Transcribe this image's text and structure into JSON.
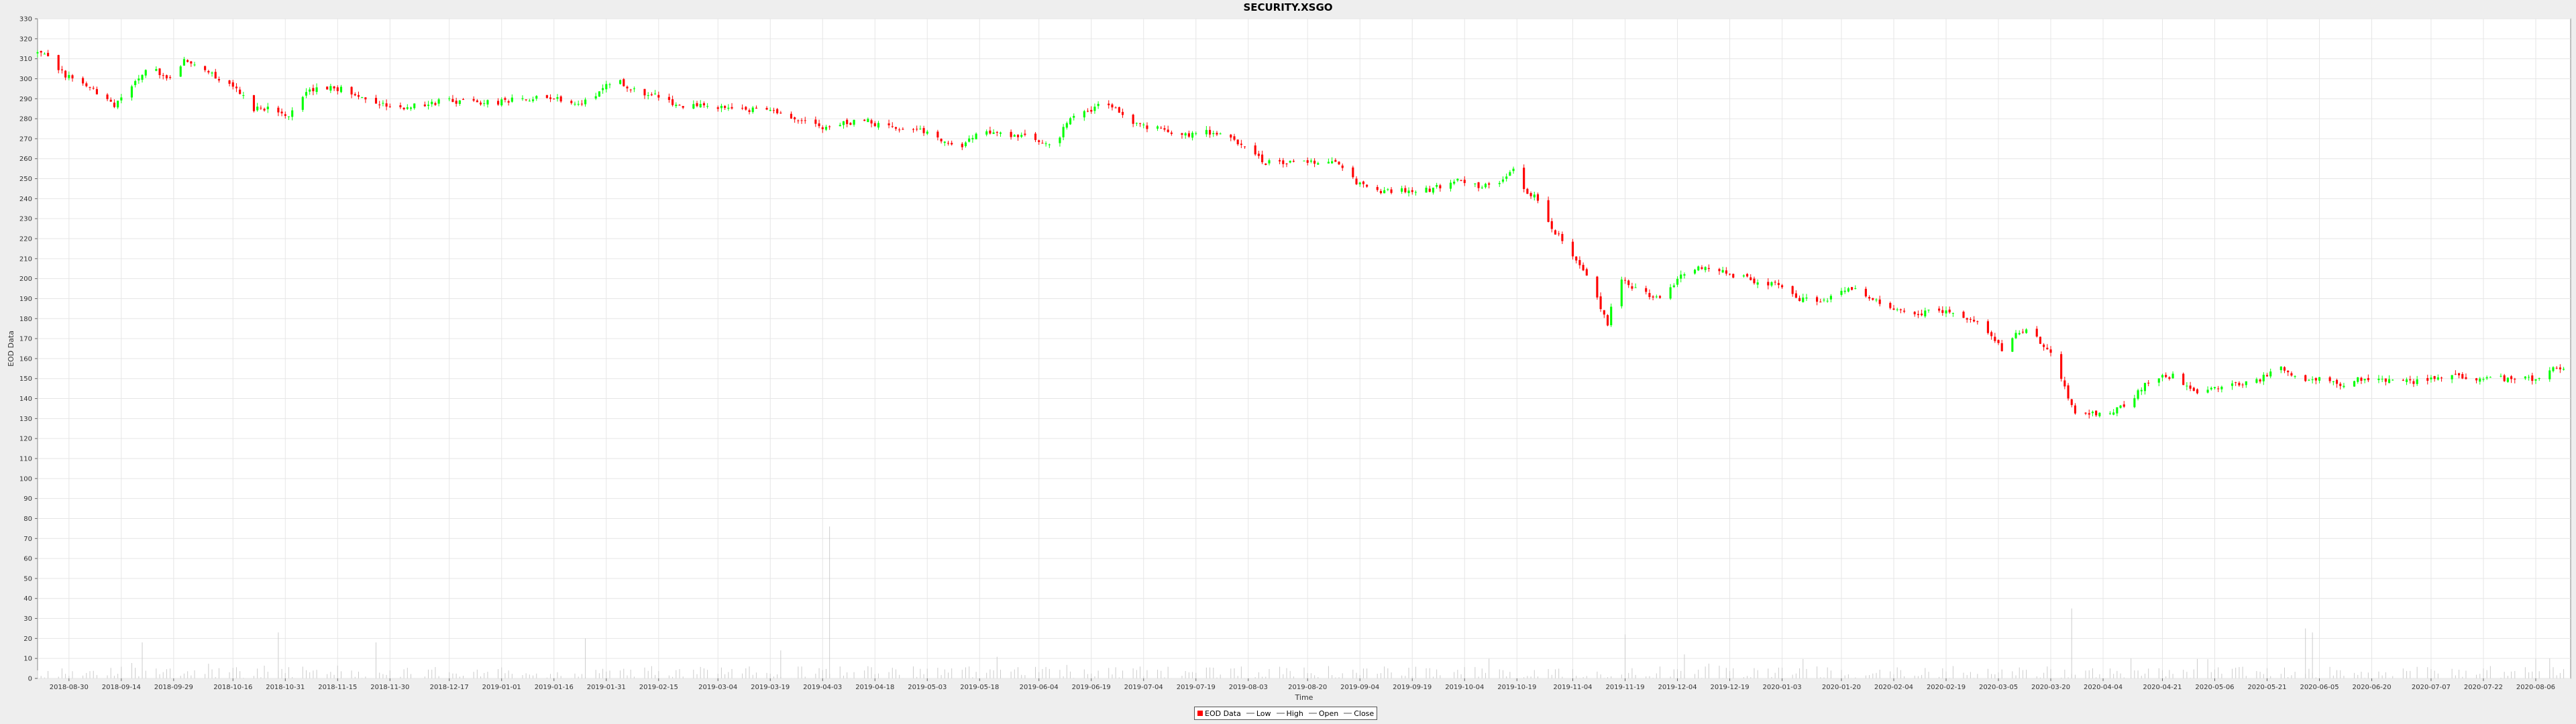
{
  "chart_data": {
    "type": "candlestick",
    "title": "SECURITY.XSGO",
    "xlabel": "Time",
    "ylabel": "EOD Data",
    "ylim": [
      0,
      330
    ],
    "y_ticks": [
      0,
      10,
      20,
      30,
      40,
      50,
      60,
      70,
      80,
      90,
      100,
      110,
      120,
      130,
      140,
      150,
      160,
      170,
      180,
      190,
      200,
      210,
      220,
      230,
      240,
      250,
      260,
      270,
      280,
      290,
      300,
      310,
      320,
      330
    ],
    "x_range": [
      "2018-08-21",
      "2020-08-16"
    ],
    "x_tick_labels": [
      "2018-08-30",
      "2018-09-14",
      "2018-09-29",
      "2018-10-16",
      "2018-10-31",
      "2018-11-15",
      "2018-11-30",
      "2018-12-17",
      "2019-01-01",
      "2019-01-16",
      "2019-01-31",
      "2019-02-15",
      "2019-03-04",
      "2019-03-19",
      "2019-04-03",
      "2019-04-18",
      "2019-05-03",
      "2019-05-18",
      "2019-06-04",
      "2019-06-19",
      "2019-07-04",
      "2019-07-19",
      "2019-08-03",
      "2019-08-20",
      "2019-09-04",
      "2019-09-19",
      "2019-10-04",
      "2019-10-19",
      "2019-11-04",
      "2019-11-19",
      "2019-12-04",
      "2019-12-19",
      "2020-01-03",
      "2020-01-20",
      "2020-02-04",
      "2020-02-19",
      "2020-03-05",
      "2020-03-20",
      "2020-04-04",
      "2020-04-21",
      "2020-05-06",
      "2020-05-21",
      "2020-06-05",
      "2020-06-20",
      "2020-07-07",
      "2020-07-22",
      "2020-08-06"
    ],
    "grid": true,
    "legend_position": "bottom-center",
    "legend": [
      "EOD Data",
      "Low",
      "High",
      "Open",
      "Close"
    ],
    "close_anchors": [
      [
        "2018-08-21",
        313
      ],
      [
        "2018-08-24",
        310
      ],
      [
        "2018-08-29",
        302
      ],
      [
        "2018-09-03",
        297
      ],
      [
        "2018-09-08",
        292
      ],
      [
        "2018-09-12",
        286
      ],
      [
        "2018-09-17",
        297
      ],
      [
        "2018-09-22",
        306
      ],
      [
        "2018-09-27",
        300
      ],
      [
        "2018-10-02",
        309
      ],
      [
        "2018-10-07",
        307
      ],
      [
        "2018-10-12",
        300
      ],
      [
        "2018-10-17",
        294
      ],
      [
        "2018-10-22",
        285
      ],
      [
        "2018-10-27",
        286
      ],
      [
        "2018-11-01",
        282
      ],
      [
        "2018-11-05",
        292
      ],
      [
        "2018-11-10",
        296
      ],
      [
        "2018-11-15",
        295
      ],
      [
        "2018-11-20",
        293
      ],
      [
        "2018-11-27",
        288
      ],
      [
        "2018-12-04",
        285
      ],
      [
        "2018-12-11",
        288
      ],
      [
        "2018-12-18",
        289
      ],
      [
        "2018-12-28",
        288
      ],
      [
        "2019-01-08",
        290
      ],
      [
        "2019-01-18",
        290
      ],
      [
        "2019-01-23",
        287
      ],
      [
        "2019-01-31",
        296
      ],
      [
        "2019-02-04",
        298
      ],
      [
        "2019-02-09",
        294
      ],
      [
        "2019-02-15",
        291
      ],
      [
        "2019-02-20",
        287
      ],
      [
        "2019-03-01",
        286
      ],
      [
        "2019-03-10",
        285
      ],
      [
        "2019-03-20",
        283
      ],
      [
        "2019-03-28",
        280
      ],
      [
        "2019-04-03",
        275
      ],
      [
        "2019-04-08",
        277
      ],
      [
        "2019-04-15",
        279
      ],
      [
        "2019-04-22",
        276
      ],
      [
        "2019-05-01",
        275
      ],
      [
        "2019-05-08",
        269
      ],
      [
        "2019-05-13",
        266
      ],
      [
        "2019-05-18",
        273
      ],
      [
        "2019-05-25",
        272
      ],
      [
        "2019-06-02",
        270
      ],
      [
        "2019-06-08",
        267
      ],
      [
        "2019-06-14",
        282
      ],
      [
        "2019-06-21",
        286
      ],
      [
        "2019-06-26",
        285
      ],
      [
        "2019-07-01",
        278
      ],
      [
        "2019-07-08",
        275
      ],
      [
        "2019-07-15",
        272
      ],
      [
        "2019-07-22",
        273
      ],
      [
        "2019-07-29",
        270
      ],
      [
        "2019-08-03",
        265
      ],
      [
        "2019-08-08",
        258
      ],
      [
        "2019-08-15",
        258
      ],
      [
        "2019-08-21",
        258
      ],
      [
        "2019-08-29",
        258
      ],
      [
        "2019-09-03",
        248
      ],
      [
        "2019-09-10",
        243
      ],
      [
        "2019-09-17",
        244
      ],
      [
        "2019-09-24",
        244
      ],
      [
        "2019-10-01",
        250
      ],
      [
        "2019-10-08",
        246
      ],
      [
        "2019-10-14",
        248
      ],
      [
        "2019-10-18",
        255
      ],
      [
        "2019-10-21",
        245
      ],
      [
        "2019-10-25",
        240
      ],
      [
        "2019-10-29",
        225
      ],
      [
        "2019-11-03",
        215
      ],
      [
        "2019-11-07",
        205
      ],
      [
        "2019-11-11",
        190
      ],
      [
        "2019-11-14",
        178
      ],
      [
        "2019-11-17",
        200
      ],
      [
        "2019-11-21",
        196
      ],
      [
        "2019-11-26",
        192
      ],
      [
        "2019-11-30",
        191
      ],
      [
        "2019-12-04",
        200
      ],
      [
        "2019-12-09",
        205
      ],
      [
        "2019-12-14",
        206
      ],
      [
        "2019-12-20",
        202
      ],
      [
        "2019-12-27",
        198
      ],
      [
        "2020-01-03",
        196
      ],
      [
        "2020-01-08",
        190
      ],
      [
        "2020-01-14",
        188
      ],
      [
        "2020-01-20",
        195
      ],
      [
        "2020-01-24",
        194
      ],
      [
        "2020-01-29",
        190
      ],
      [
        "2020-02-04",
        185
      ],
      [
        "2020-02-12",
        183
      ],
      [
        "2020-02-19",
        184
      ],
      [
        "2020-02-26",
        180
      ],
      [
        "2020-03-02",
        174
      ],
      [
        "2020-03-06",
        165
      ],
      [
        "2020-03-10",
        172
      ],
      [
        "2020-03-14",
        174
      ],
      [
        "2020-03-17",
        168
      ],
      [
        "2020-03-20",
        162
      ],
      [
        "2020-03-24",
        145
      ],
      [
        "2020-03-28",
        130
      ],
      [
        "2020-04-02",
        133
      ],
      [
        "2020-04-06",
        132
      ],
      [
        "2020-04-12",
        140
      ],
      [
        "2020-04-18",
        150
      ],
      [
        "2020-04-24",
        151
      ],
      [
        "2020-05-01",
        143
      ],
      [
        "2020-05-07",
        146
      ],
      [
        "2020-05-13",
        147
      ],
      [
        "2020-05-19",
        150
      ],
      [
        "2020-05-25",
        155
      ],
      [
        "2020-05-30",
        150
      ],
      [
        "2020-06-05",
        150
      ],
      [
        "2020-06-11",
        147
      ],
      [
        "2020-06-15",
        150
      ],
      [
        "2020-06-21",
        150
      ],
      [
        "2020-06-27",
        148
      ],
      [
        "2020-07-05",
        149
      ],
      [
        "2020-07-12",
        152
      ],
      [
        "2020-07-18",
        149
      ],
      [
        "2020-07-24",
        151
      ],
      [
        "2020-07-30",
        149
      ],
      [
        "2020-08-05",
        150
      ],
      [
        "2020-08-10",
        154
      ],
      [
        "2020-08-16",
        156
      ]
    ],
    "volume_spikes": [
      [
        "2018-09-20",
        18
      ],
      [
        "2018-10-29",
        23
      ],
      [
        "2018-11-26",
        18
      ],
      [
        "2019-01-25",
        20
      ],
      [
        "2019-03-22",
        14
      ],
      [
        "2019-04-05",
        76
      ],
      [
        "2019-11-19",
        22
      ],
      [
        "2019-12-06",
        12
      ],
      [
        "2020-03-26",
        35
      ],
      [
        "2020-04-12",
        10
      ],
      [
        "2020-06-01",
        25
      ],
      [
        "2020-06-03",
        23
      ],
      [
        "2020-08-10",
        10
      ]
    ],
    "colors": {
      "up": "#00ff00",
      "down": "#ff0000",
      "background": "#ffffff",
      "grid": "#e6e6e6",
      "volume": "#cccccc"
    }
  }
}
